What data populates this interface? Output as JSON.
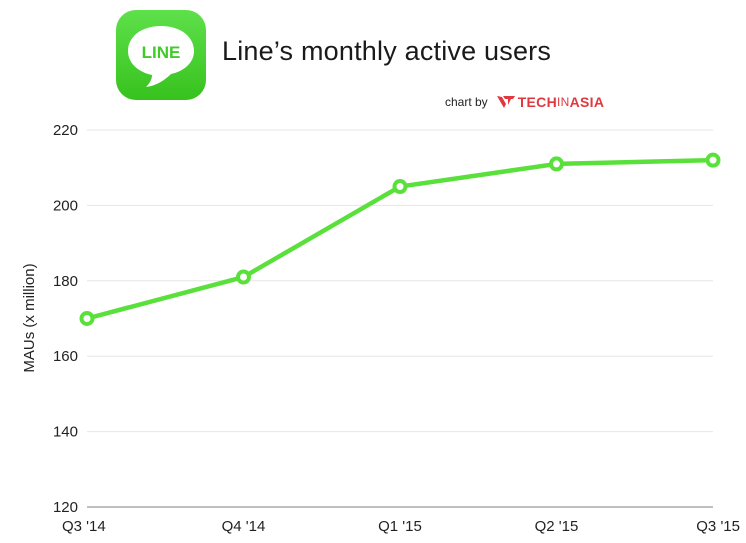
{
  "header": {
    "title": "Line’s monthly active users",
    "credit_prefix": "chart by",
    "credit_brand_pre": "TECH",
    "credit_brand_mid": "IN",
    "credit_brand_post": "ASIA"
  },
  "logo": {
    "text": "LINE",
    "icon": "line-app-icon"
  },
  "colors": {
    "line": "#5ae03a",
    "grid": "#e6e6e6",
    "logo_green": "#3fcb28",
    "brand_red": "#e0383e"
  },
  "chart_data": {
    "type": "line",
    "title": "Line’s monthly active users",
    "xlabel": "",
    "ylabel": "MAUs (x million)",
    "categories": [
      "Q3 '14",
      "Q4 '14",
      "Q1 '15",
      "Q2 '15",
      "Q3 '15"
    ],
    "series": [
      {
        "values": [
          170,
          181,
          205,
          211,
          212
        ]
      }
    ],
    "ylim": [
      120,
      220
    ],
    "yticks": [
      120,
      140,
      160,
      180,
      200,
      220
    ],
    "grid": true,
    "legend": "none"
  }
}
